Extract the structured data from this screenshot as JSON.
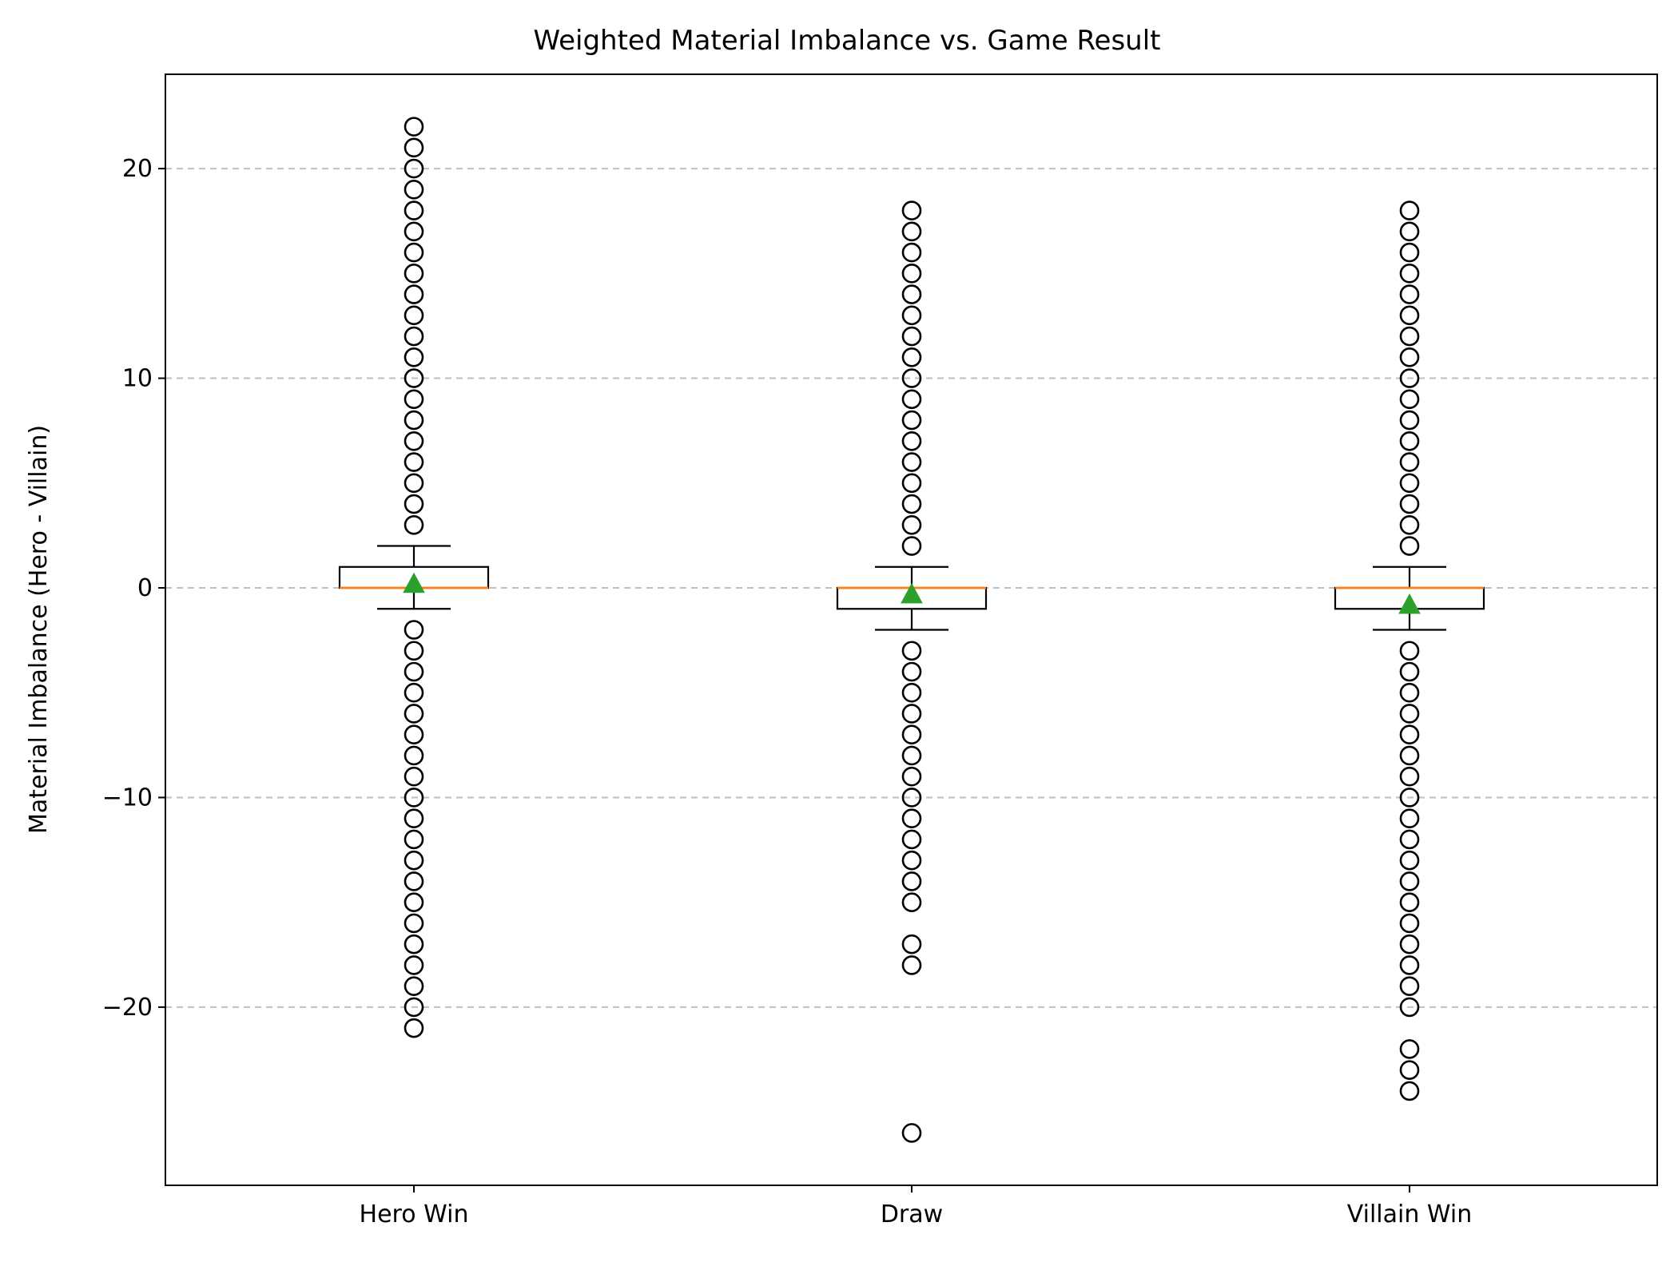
{
  "chart_data": {
    "type": "box",
    "title": "Weighted Material Imbalance vs. Game Result",
    "xlabel": "",
    "ylabel": "Material Imbalance (Hero - Villain)",
    "ylim": [
      -28.5,
      24.5
    ],
    "yticks": [
      -20,
      -10,
      0,
      10,
      20
    ],
    "ytick_labels": [
      "−20",
      "−10",
      "0",
      "10",
      "20"
    ],
    "grid": "horizontal dashed",
    "categories": [
      "Hero Win",
      "Draw",
      "Villain Win"
    ],
    "boxes": [
      {
        "category": "Hero Win",
        "whisker_low": -1,
        "q1": 0,
        "median": 0,
        "q3": 1,
        "whisker_high": 2,
        "mean": 0.2,
        "outliers": [
          -21,
          -20,
          -19,
          -18,
          -17,
          -16,
          -15,
          -14,
          -13,
          -12,
          -11,
          -10,
          -9,
          -8,
          -7,
          -6,
          -5,
          -4,
          -3,
          -2,
          3,
          4,
          5,
          6,
          7,
          8,
          9,
          10,
          11,
          12,
          13,
          14,
          15,
          16,
          17,
          18,
          19,
          20,
          21,
          22
        ]
      },
      {
        "category": "Draw",
        "whisker_low": -2,
        "q1": -1,
        "median": 0,
        "q3": 0,
        "whisker_high": 1,
        "mean": -0.3,
        "outliers": [
          -26,
          -18,
          -17,
          -15,
          -14,
          -13,
          -12,
          -11,
          -10,
          -9,
          -8,
          -7,
          -6,
          -5,
          -4,
          -3,
          2,
          3,
          4,
          5,
          6,
          7,
          8,
          9,
          10,
          11,
          12,
          13,
          14,
          15,
          16,
          17,
          18
        ]
      },
      {
        "category": "Villain Win",
        "whisker_low": -2,
        "q1": -1,
        "median": 0,
        "q3": 0,
        "whisker_high": 1,
        "mean": -0.8,
        "outliers": [
          -24,
          -23,
          -22,
          -20,
          -19,
          -18,
          -17,
          -16,
          -15,
          -14,
          -13,
          -12,
          -11,
          -10,
          -9,
          -8,
          -7,
          -6,
          -5,
          -4,
          -3,
          2,
          3,
          4,
          5,
          6,
          7,
          8,
          9,
          10,
          11,
          12,
          13,
          14,
          15,
          16,
          17,
          18
        ]
      }
    ],
    "colors": {
      "box": "#000000",
      "median": "#ff7f0e",
      "mean": "#2ca02c",
      "grid": "#b0b0b0",
      "outlier": "#000000"
    }
  }
}
